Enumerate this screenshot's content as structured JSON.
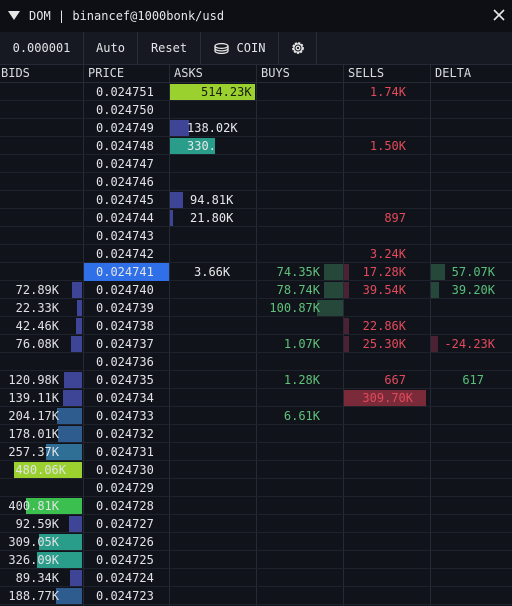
{
  "window": {
    "title": "DOM | binancef@1000bonk/usd",
    "close_icon": "close-icon"
  },
  "toolbar": {
    "tick_size": "0.000001",
    "auto_label": "Auto",
    "reset_label": "Reset",
    "unit_label": "COIN",
    "coin_icon": "coin-stack-icon",
    "settings_icon": "gear-icon"
  },
  "columns": [
    "BIDS",
    "PRICE",
    "ASKS",
    "BUYS",
    "SELLS",
    "DELTA"
  ],
  "colors": {
    "background": "#11131b",
    "highlight_price": "#2f6fe8",
    "bar_purple": "#3f4596",
    "bar_teal": "#2a9c8a",
    "bar_lime": "#9bd12f",
    "bar_blue": "#3a6fa6",
    "bar_green": "#3bbf4f",
    "buy_text": "#5fc27a",
    "sell_text": "#e24a5c"
  },
  "current_price": "0.024741",
  "rows": [
    {
      "price": "0.024751",
      "bid": "",
      "ask": "514.23K",
      "buy": "",
      "sell": "1.74K",
      "delta": ""
    },
    {
      "price": "0.024750",
      "bid": "",
      "ask": "",
      "buy": "",
      "sell": "",
      "delta": ""
    },
    {
      "price": "0.024749",
      "bid": "",
      "ask": "138.02K",
      "buy": "",
      "sell": "",
      "delta": ""
    },
    {
      "price": "0.024748",
      "bid": "",
      "ask": "330.",
      "buy": "",
      "sell": "1.50K",
      "delta": ""
    },
    {
      "price": "0.024747",
      "bid": "",
      "ask": "",
      "buy": "",
      "sell": "",
      "delta": ""
    },
    {
      "price": "0.024746",
      "bid": "",
      "ask": "",
      "buy": "",
      "sell": "",
      "delta": ""
    },
    {
      "price": "0.024745",
      "bid": "",
      "ask": "94.81K",
      "buy": "",
      "sell": "",
      "delta": ""
    },
    {
      "price": "0.024744",
      "bid": "",
      "ask": "21.80K",
      "buy": "",
      "sell": "897",
      "delta": ""
    },
    {
      "price": "0.024743",
      "bid": "",
      "ask": "",
      "buy": "",
      "sell": "",
      "delta": ""
    },
    {
      "price": "0.024742",
      "bid": "",
      "ask": "",
      "buy": "",
      "sell": "3.24K",
      "delta": ""
    },
    {
      "price": "0.024741",
      "bid": "",
      "ask": "3.66K",
      "buy": "74.35K",
      "sell": "17.28K",
      "delta": "57.07K"
    },
    {
      "price": "0.024740",
      "bid": "72.89K",
      "ask": "",
      "buy": "78.74K",
      "sell": "39.54K",
      "delta": "39.20K"
    },
    {
      "price": "0.024739",
      "bid": "22.33K",
      "ask": "",
      "buy": "100.87K",
      "sell": "",
      "delta": ""
    },
    {
      "price": "0.024738",
      "bid": "42.46K",
      "ask": "",
      "buy": "",
      "sell": "22.86K",
      "delta": ""
    },
    {
      "price": "0.024737",
      "bid": "76.08K",
      "ask": "",
      "buy": "1.07K",
      "sell": "25.30K",
      "delta": "-24.23K"
    },
    {
      "price": "0.024736",
      "bid": "",
      "ask": "",
      "buy": "",
      "sell": "",
      "delta": ""
    },
    {
      "price": "0.024735",
      "bid": "120.98K",
      "ask": "",
      "buy": "1.28K",
      "sell": "667",
      "delta": "617"
    },
    {
      "price": "0.024734",
      "bid": "139.11K",
      "ask": "",
      "buy": "",
      "sell": "309.70K",
      "delta": ""
    },
    {
      "price": "0.024733",
      "bid": "204.17K",
      "ask": "",
      "buy": "6.61K",
      "sell": "",
      "delta": ""
    },
    {
      "price": "0.024732",
      "bid": "178.01K",
      "ask": "",
      "buy": "",
      "sell": "",
      "delta": ""
    },
    {
      "price": "0.024731",
      "bid": "257.37K",
      "ask": "",
      "buy": "",
      "sell": "",
      "delta": ""
    },
    {
      "price": "0.024730",
      "bid": "480.06K",
      "ask": "",
      "buy": "",
      "sell": "",
      "delta": ""
    },
    {
      "price": "0.024729",
      "bid": "",
      "ask": "",
      "buy": "",
      "sell": "",
      "delta": ""
    },
    {
      "price": "0.024728",
      "bid": "400.81K",
      "ask": "",
      "buy": "",
      "sell": "",
      "delta": ""
    },
    {
      "price": "0.024727",
      "bid": "92.59K",
      "ask": "",
      "buy": "",
      "sell": "",
      "delta": ""
    },
    {
      "price": "0.024726",
      "bid": "309.05K",
      "ask": "",
      "buy": "",
      "sell": "",
      "delta": ""
    },
    {
      "price": "0.024725",
      "bid": "326.09K",
      "ask": "",
      "buy": "",
      "sell": "",
      "delta": ""
    },
    {
      "price": "0.024724",
      "bid": "89.34K",
      "ask": "",
      "buy": "",
      "sell": "",
      "delta": ""
    },
    {
      "price": "0.024723",
      "bid": "188.77K",
      "ask": "",
      "buy": "",
      "sell": "",
      "delta": ""
    }
  ]
}
